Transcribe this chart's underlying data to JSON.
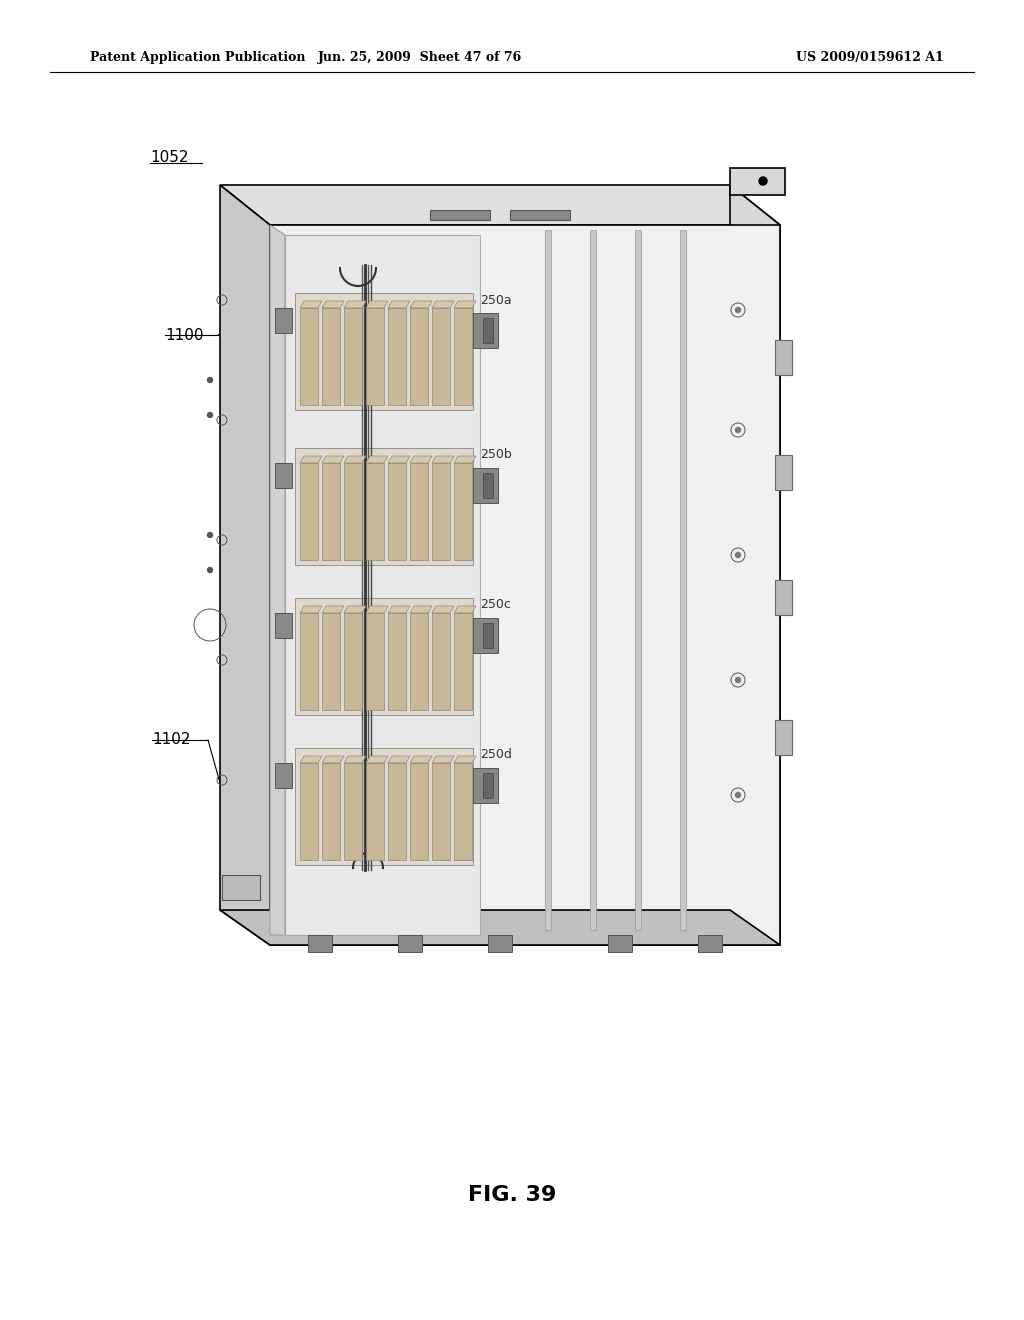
{
  "title_left": "Patent Application Publication",
  "title_center": "Jun. 25, 2009  Sheet 47 of 76",
  "title_right": "US 2009/0159612 A1",
  "fig_label": "FIG. 39",
  "ref_1052": "1052",
  "ref_1100": "1100",
  "ref_1102": "1102",
  "ref_250a": "250a",
  "ref_250b": "250b",
  "ref_250c": "250c",
  "ref_250d": "250d",
  "bg_color": "#ffffff",
  "line_color": "#000000",
  "gray_light": "#cccccc",
  "gray_mid": "#999999",
  "gray_dark": "#666666"
}
